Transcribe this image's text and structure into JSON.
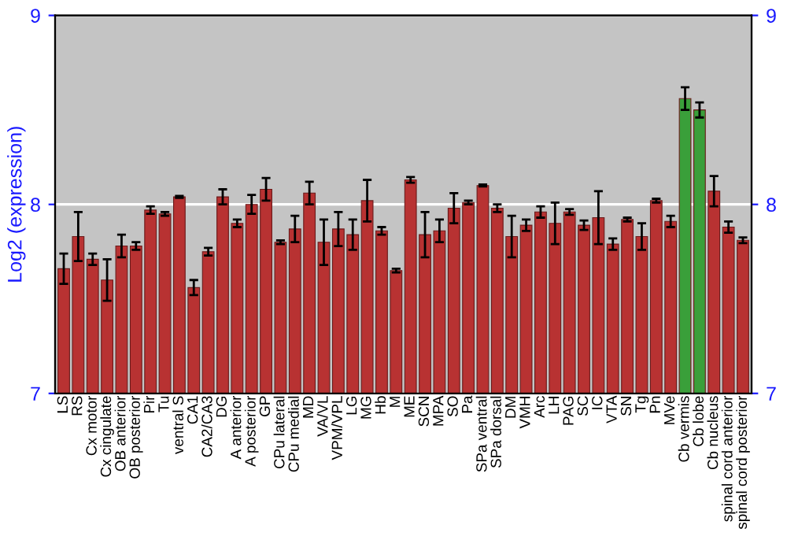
{
  "chart_data": {
    "type": "bar",
    "ylabel": "Log2 (expression)",
    "categories": [
      "LS",
      "RS",
      "Cx motor",
      "Cx cingulate",
      "OB anterior",
      "OB posterior",
      "Pir",
      "Tu",
      "ventral S",
      "CA1",
      "CA2/CA3",
      "DG",
      "A anterior",
      "A posterior",
      "GP",
      "CPu lateral",
      "CPu medial",
      "MD",
      "VA/VL",
      "VPM/VPL",
      "LG",
      "MG",
      "Hb",
      "M",
      "ME",
      "SCN",
      "MPA",
      "SO",
      "Pa",
      "SPa ventral",
      "SPa dorsal",
      "DM",
      "VMH",
      "Arc",
      "LH",
      "PAG",
      "SC",
      "IC",
      "VTA",
      "SN",
      "Tg",
      "Pn",
      "MVe",
      "Cb vermis",
      "Cb lobe",
      "Cb nucleus",
      "spinal cord anterior",
      "spinal cord posterior"
    ],
    "values": [
      7.66,
      7.83,
      7.71,
      7.6,
      7.78,
      7.78,
      7.97,
      7.95,
      8.04,
      7.56,
      7.75,
      8.04,
      7.9,
      8.0,
      8.08,
      7.8,
      7.87,
      8.06,
      7.8,
      7.87,
      7.84,
      8.02,
      7.86,
      7.65,
      8.13,
      7.84,
      7.86,
      7.98,
      8.01,
      8.1,
      7.98,
      7.83,
      7.89,
      7.96,
      7.9,
      7.96,
      7.89,
      7.93,
      7.79,
      7.92,
      7.83,
      8.02,
      7.91,
      8.56,
      8.5,
      8.07,
      7.88,
      7.81
    ],
    "errors": [
      0.08,
      0.13,
      0.03,
      0.11,
      0.06,
      0.02,
      0.02,
      0.01,
      0.005,
      0.04,
      0.02,
      0.04,
      0.02,
      0.05,
      0.06,
      0.01,
      0.07,
      0.06,
      0.12,
      0.09,
      0.08,
      0.11,
      0.02,
      0.01,
      0.015,
      0.12,
      0.06,
      0.08,
      0.01,
      0.005,
      0.02,
      0.11,
      0.03,
      0.03,
      0.11,
      0.015,
      0.025,
      0.14,
      0.03,
      0.01,
      0.07,
      0.01,
      0.03,
      0.06,
      0.04,
      0.08,
      0.03,
      0.015
    ],
    "colors": [
      "#b83232",
      "#b83232",
      "#b83232",
      "#b83232",
      "#b83232",
      "#b83232",
      "#b83232",
      "#b83232",
      "#b83232",
      "#b83232",
      "#b83232",
      "#b83232",
      "#b83232",
      "#b83232",
      "#b83232",
      "#b83232",
      "#b83232",
      "#b83232",
      "#b83232",
      "#b83232",
      "#b83232",
      "#b83232",
      "#b83232",
      "#b83232",
      "#b83232",
      "#b83232",
      "#b83232",
      "#b83232",
      "#b83232",
      "#b83232",
      "#b83232",
      "#b83232",
      "#b83232",
      "#b83232",
      "#b83232",
      "#b83232",
      "#b83232",
      "#b83232",
      "#b83232",
      "#b83232",
      "#b83232",
      "#b83232",
      "#b83232",
      "#3a9f3a",
      "#3a9f3a",
      "#b83232",
      "#b83232",
      "#b83232"
    ],
    "ylim": [
      7,
      9
    ],
    "yticks": [
      7,
      8,
      9
    ],
    "y2lim": [
      7,
      9
    ],
    "y2ticks": [
      7,
      8,
      9
    ],
    "grid": "y"
  }
}
